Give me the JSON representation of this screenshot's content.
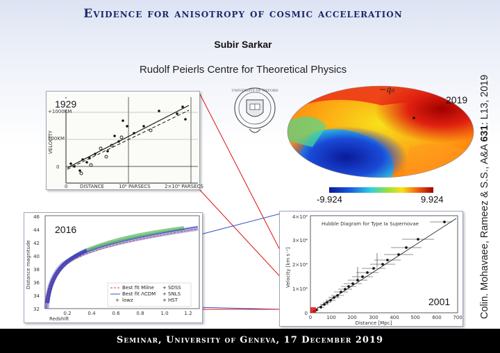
{
  "header": {
    "title": "Evidence for anisotropy of cosmic acceleration",
    "author": "Subir Sarkar",
    "institute": "Rudolf Peierls Centre for Theoretical Physics"
  },
  "citation": {
    "prefix": "Colin. Mohavaee, Rameez & S.S., A&A ",
    "volume": "631",
    "suffix": ": L13, 2019"
  },
  "panels": {
    "hubble_1929": {
      "year": "1929",
      "ylabel": "VELOCITY",
      "y_ticks": [
        "+1000KM",
        "500KM",
        "0"
      ],
      "x_ticks": [
        "0",
        "10⁶ PARSECS",
        "2×10⁶ PARSECS"
      ],
      "xlabel": "DISTANCE"
    },
    "skymap_2019": {
      "year": "2019",
      "symbol": "−q₀",
      "colorbar_min": "-9.924",
      "colorbar_max": "9.924"
    },
    "hubble_diagram_sn": {
      "year": "2001",
      "title": "Hubble Diagram for Type Ia Supernovae",
      "ylabel": "Velocity [km s⁻¹]",
      "xlabel": "Distance [Mpc]",
      "x_ticks": [
        "0",
        "100",
        "200",
        "300",
        "400",
        "500",
        "600",
        "700"
      ],
      "y_ticks": [
        "0",
        "1×10⁴",
        "2×10⁴",
        "3×10⁴",
        "4×10⁴"
      ]
    },
    "hubble_2016": {
      "year": "2016",
      "ylabel": "Distance magnitude",
      "xlabel": "Redshift",
      "y_ticks": [
        "46",
        "44",
        "42",
        "40",
        "38",
        "36",
        "34",
        "32"
      ],
      "x_ticks": [
        "0.2",
        "0.4",
        "0.6",
        "0.8",
        "1.0",
        "1.2"
      ],
      "legend": {
        "milne": "Best fit Milne",
        "lcdm": "Best fit ΛCDM",
        "lowz": "lowz",
        "sdss": "SDSS",
        "snls": "SNLS",
        "hst": "HST"
      }
    }
  },
  "footer": {
    "text": "Seminar, University of Geneva, 17 December 2019"
  }
}
